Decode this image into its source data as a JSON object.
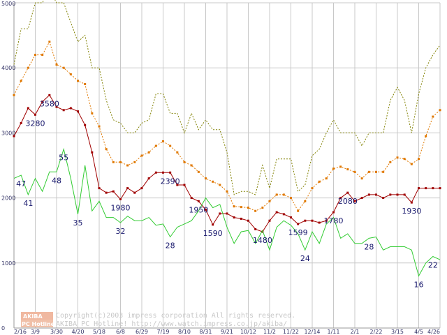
{
  "chart_data": {
    "type": "line",
    "title": "",
    "xlabel": "",
    "ylabel": "",
    "ylim": [
      0,
      5000
    ],
    "yticks": [
      0,
      1000,
      2000,
      3000,
      4000,
      5000
    ],
    "grid": true,
    "x_tick_labels": [
      "2/16",
      "3/9",
      "3/30",
      "4/20",
      "5/18",
      "6/8",
      "6/29",
      "7/19",
      "8/10",
      "8/31",
      "9/21",
      "10/12",
      "11/2",
      "11/22",
      "12/14",
      "1/11",
      "2/1",
      "2/22",
      "3/15",
      "4/5",
      "4/26"
    ],
    "series": [
      {
        "name": "olive-dotted",
        "color": "#808000",
        "style": "dotted",
        "values": [
          4050,
          4600,
          4600,
          5000,
          5000,
          5200,
          5000,
          5000,
          4700,
          4400,
          4500,
          4000,
          4000,
          3500,
          3200,
          3150,
          3000,
          3000,
          3150,
          3200,
          3600,
          3600,
          3300,
          3300,
          3000,
          3300,
          3050,
          3200,
          3050,
          3050,
          2700,
          2050,
          2100,
          2100,
          2050,
          2500,
          2150,
          2600,
          2600,
          2600,
          2100,
          2200,
          2650,
          2750,
          3000,
          3200,
          3000,
          3000,
          3000,
          2800,
          3000,
          3000,
          3000,
          3500,
          3700,
          3500,
          3000,
          3600,
          4000,
          4200,
          4350
        ]
      },
      {
        "name": "orange-dotted",
        "color": "#e07800",
        "style": "dotted",
        "values": [
          3580,
          3800,
          4000,
          4200,
          4200,
          4400,
          4050,
          4000,
          3900,
          3800,
          3750,
          3300,
          3100,
          2750,
          2550,
          2550,
          2500,
          2550,
          2650,
          2700,
          2800,
          2870,
          2800,
          2700,
          2550,
          2500,
          2400,
          2300,
          2250,
          2200,
          2100,
          1870,
          1860,
          1850,
          1800,
          1850,
          1950,
          2050,
          2050,
          2000,
          1800,
          1950,
          2150,
          2250,
          2300,
          2450,
          2480,
          2440,
          2400,
          2300,
          2400,
          2400,
          2400,
          2550,
          2620,
          2600,
          2520,
          2600,
          2950,
          3250,
          3350
        ]
      },
      {
        "name": "dark-red",
        "color": "#a00000",
        "style": "solid",
        "values": [
          2950,
          3150,
          3380,
          3280,
          3480,
          3580,
          3400,
          3350,
          3380,
          3330,
          3120,
          2700,
          2150,
          2080,
          2100,
          1980,
          2150,
          2080,
          2150,
          2300,
          2390,
          2390,
          2390,
          2200,
          2200,
          2000,
          1950,
          1820,
          1590,
          1760,
          1760,
          1700,
          1680,
          1650,
          1520,
          1480,
          1650,
          1780,
          1750,
          1700,
          1599,
          1650,
          1650,
          1620,
          1650,
          1780,
          2000,
          2080,
          1950,
          2000,
          2050,
          2050,
          2000,
          2050,
          2050,
          2050,
          1930,
          2150,
          2150,
          2150,
          2150
        ]
      },
      {
        "name": "green",
        "color": "#33cc33",
        "style": "solid",
        "values": [
          2300,
          2350,
          2050,
          2300,
          2100,
          2400,
          2400,
          2750,
          2300,
          1750,
          2500,
          1800,
          1950,
          1700,
          1700,
          1620,
          1720,
          1650,
          1650,
          1700,
          1580,
          1600,
          1400,
          1550,
          1600,
          1650,
          1800,
          2000,
          1850,
          1900,
          1550,
          1300,
          1480,
          1500,
          1300,
          1500,
          1200,
          1550,
          1650,
          1580,
          1450,
          1200,
          1480,
          1300,
          1600,
          1700,
          1380,
          1450,
          1300,
          1300,
          1380,
          1400,
          1200,
          1250,
          1250,
          1250,
          1200,
          800,
          1000,
          1100,
          1050
        ]
      }
    ],
    "annotations": [
      {
        "text": "47",
        "series": "green",
        "index": 1
      },
      {
        "text": "41",
        "series": "green",
        "index": 2
      },
      {
        "text": "3280",
        "series": "dark-red",
        "index": 3
      },
      {
        "text": "3580",
        "series": "dark-red",
        "index": 5
      },
      {
        "text": "48",
        "series": "green",
        "index": 6
      },
      {
        "text": "55",
        "series": "green",
        "index": 7
      },
      {
        "text": "35",
        "series": "green",
        "index": 9
      },
      {
        "text": "1980",
        "series": "dark-red",
        "index": 15
      },
      {
        "text": "32",
        "series": "green",
        "index": 15
      },
      {
        "text": "2390",
        "series": "dark-red",
        "index": 22
      },
      {
        "text": "28",
        "series": "green",
        "index": 22
      },
      {
        "text": "1950",
        "series": "dark-red",
        "index": 26
      },
      {
        "text": "1590",
        "series": "dark-red",
        "index": 28
      },
      {
        "text": "1480",
        "series": "dark-red",
        "index": 35
      },
      {
        "text": "1599",
        "series": "dark-red",
        "index": 40
      },
      {
        "text": "24",
        "series": "green",
        "index": 41
      },
      {
        "text": "1780",
        "series": "dark-red",
        "index": 45
      },
      {
        "text": "2080",
        "series": "dark-red",
        "index": 47
      },
      {
        "text": "28",
        "series": "green",
        "index": 50
      },
      {
        "text": "1930",
        "series": "dark-red",
        "index": 56
      },
      {
        "text": "16",
        "series": "green",
        "index": 57
      },
      {
        "text": "22",
        "series": "green",
        "index": 59
      }
    ]
  },
  "footer": {
    "logo_top": "AKIBA",
    "logo_bottom": "PC Hotline!",
    "copyright": "Copyright(c)2003 impress corporation All rights reserved.",
    "site": "AKIBA PC Hotline! http://www.watch.impress.co.jp/akiba/"
  }
}
